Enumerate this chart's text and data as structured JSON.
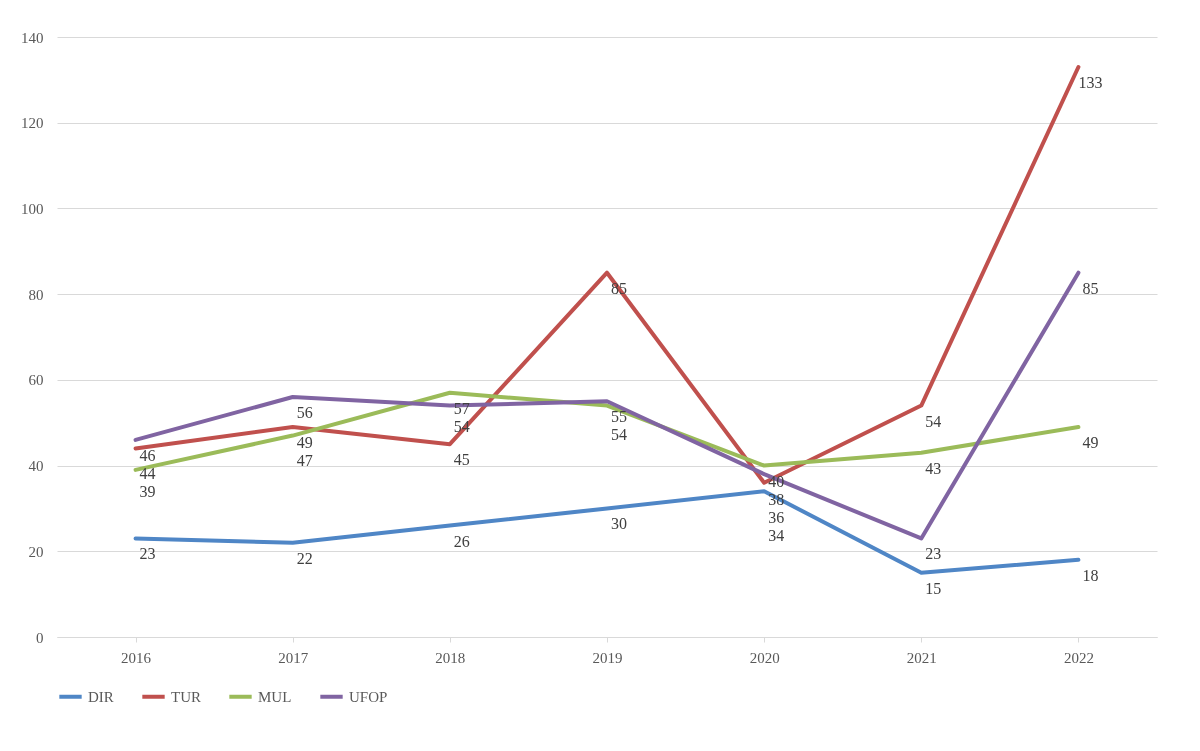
{
  "chart_data": {
    "type": "line",
    "categories": [
      "2016",
      "2017",
      "2018",
      "2019",
      "2020",
      "2021",
      "2022"
    ],
    "series": [
      {
        "name": "DIR",
        "color": "#4f86c6",
        "values": [
          23,
          22,
          26,
          30,
          34,
          15,
          18
        ]
      },
      {
        "name": "TUR",
        "color": "#c0504d",
        "values": [
          44,
          49,
          45,
          85,
          36,
          54,
          133
        ]
      },
      {
        "name": "MUL",
        "color": "#9bbb59",
        "values": [
          39,
          47,
          57,
          54,
          40,
          43,
          49
        ]
      },
      {
        "name": "UFOP",
        "color": "#8064a2",
        "values": [
          46,
          56,
          54,
          55,
          38,
          23,
          85
        ]
      }
    ],
    "ylim": [
      0,
      140
    ],
    "yticks": [
      0,
      20,
      40,
      60,
      80,
      100,
      120,
      140
    ],
    "grid": "y",
    "legend": "bottom",
    "data_labels": true,
    "marker": "none",
    "line_style": "solid"
  }
}
